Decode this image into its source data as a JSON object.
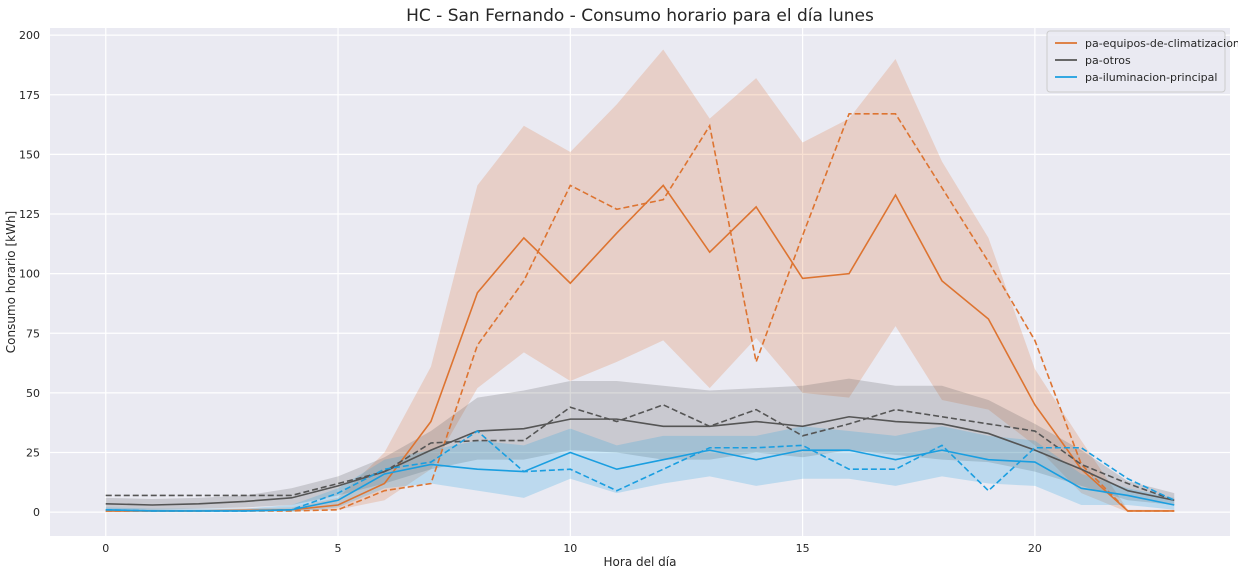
{
  "chart_data": {
    "type": "line",
    "title": "HC - San Fernando - Consumo horario para el día lunes",
    "xlabel": "Hora del día",
    "ylabel": "Consumo horario [kWh]",
    "xlim": [
      -1.2,
      24.2
    ],
    "ylim": [
      -10,
      203
    ],
    "xticks": [
      0,
      5,
      10,
      15,
      20
    ],
    "yticks": [
      0,
      25,
      50,
      75,
      100,
      125,
      150,
      175,
      200
    ],
    "grid": true,
    "legend_position": "top-right",
    "x": [
      0,
      1,
      2,
      3,
      4,
      5,
      6,
      7,
      8,
      9,
      10,
      11,
      12,
      13,
      14,
      15,
      16,
      17,
      18,
      19,
      20,
      21,
      22,
      23
    ],
    "series": [
      {
        "name": "pa-equipos-de-climatizacion",
        "color": "#dd7431",
        "mean": [
          0.5,
          0.5,
          0.5,
          0.8,
          1,
          3,
          12,
          38,
          92,
          115,
          96,
          117,
          137,
          109,
          128,
          98,
          100,
          133,
          97,
          81,
          45,
          18,
          0.5,
          0.5
        ],
        "upper": [
          1,
          1,
          1,
          1.5,
          2,
          6,
          25,
          61,
          137,
          162,
          151,
          171,
          194,
          165,
          182,
          155,
          165,
          190,
          147,
          115,
          60,
          30,
          1,
          1
        ],
        "lower": [
          0,
          0,
          0,
          0.3,
          0.5,
          1,
          5,
          18,
          52,
          67,
          55,
          63,
          72,
          52,
          73,
          50,
          48,
          78,
          47,
          43,
          28,
          8,
          0,
          0
        ],
        "reference": [
          0.5,
          0.5,
          0.5,
          0.5,
          0.5,
          1,
          9,
          12,
          70,
          97,
          137,
          127,
          131,
          162,
          63,
          116,
          167,
          167,
          136,
          105,
          72,
          20,
          0.5,
          0.5
        ]
      },
      {
        "name": "pa-otros",
        "color": "#555555",
        "mean": [
          3.5,
          3,
          3.5,
          4.5,
          6,
          11,
          17,
          26,
          34,
          35,
          39,
          39,
          36,
          36,
          38,
          36,
          40,
          38,
          37,
          33,
          26,
          18,
          9,
          5
        ],
        "upper": [
          6,
          5.5,
          6,
          7,
          10,
          15,
          23,
          34,
          48,
          51,
          55,
          55,
          53,
          51,
          52,
          53,
          56,
          53,
          53,
          47,
          37,
          26,
          13,
          8
        ],
        "lower": [
          1,
          1,
          1.5,
          2,
          3,
          7,
          12,
          18,
          22,
          22,
          26,
          25,
          22,
          22,
          25,
          23,
          26,
          24,
          22,
          21,
          17,
          11,
          5,
          3
        ],
        "reference": [
          7,
          7,
          7,
          7,
          7,
          12,
          17,
          29,
          30,
          30,
          44,
          38,
          45,
          36,
          43,
          32,
          37,
          43,
          40,
          37,
          34,
          20,
          12,
          5
        ]
      },
      {
        "name": "pa-iluminacion-principal",
        "color": "#1a9ee0",
        "mean": [
          1,
          0.5,
          0.5,
          0.5,
          1,
          5,
          16,
          20,
          18,
          17,
          25,
          18,
          22,
          26,
          22,
          26,
          26,
          22,
          26,
          22,
          21,
          10,
          7,
          3
        ],
        "upper": [
          2,
          1.5,
          1.5,
          1.5,
          3,
          10,
          22,
          26,
          30,
          28,
          35,
          28,
          32,
          32,
          32,
          36,
          34,
          32,
          36,
          32,
          30,
          16,
          10,
          6
        ],
        "lower": [
          0,
          0,
          0,
          0,
          0,
          2,
          10,
          12,
          9,
          6,
          14,
          8,
          12,
          15,
          11,
          14,
          14,
          11,
          15,
          12,
          11,
          3,
          3,
          1
        ],
        "reference": [
          1,
          0.5,
          0.5,
          0.5,
          1,
          8,
          18,
          21,
          34,
          17,
          18,
          9,
          18,
          27,
          27,
          28,
          18,
          18,
          28,
          9,
          27,
          27,
          14,
          5
        ]
      }
    ]
  }
}
